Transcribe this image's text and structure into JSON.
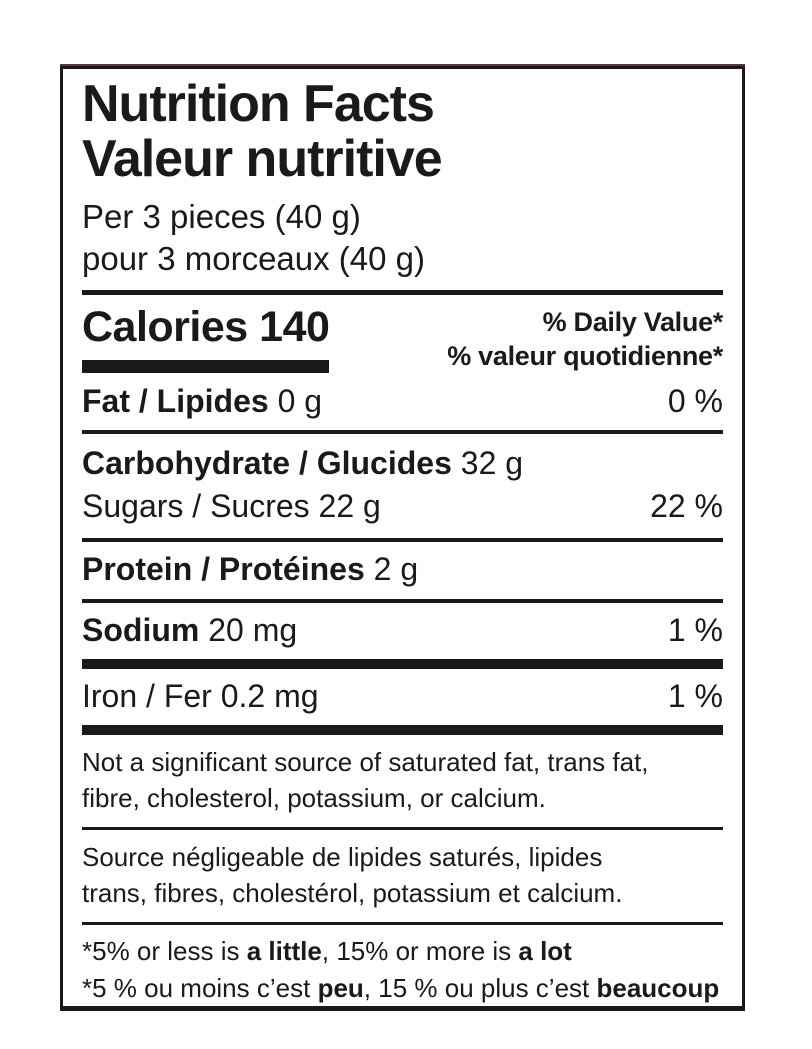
{
  "label": {
    "title_en": "Nutrition Facts",
    "title_fr": "Valeur nutritive",
    "serving_en": "Per 3 pieces (40 g)",
    "serving_fr": "pour 3 morceaux (40 g)",
    "calories_label": "Calories",
    "calories_value": "140",
    "daily_value_en": "% Daily Value*",
    "daily_value_fr": "% valeur quotidienne*",
    "rows": {
      "fat": {
        "name": "Fat / Lipides",
        "amount": "0 g",
        "pct": "0 %"
      },
      "carbohydrate": {
        "name": "Carbohydrate / Glucides",
        "amount": "32 g"
      },
      "sugars": {
        "name": "Sugars / Sucres 22 g",
        "pct": "22 %"
      },
      "protein": {
        "name": "Protein / Protéines",
        "amount": "2 g"
      },
      "sodium": {
        "name": "Sodium",
        "amount": "20 mg",
        "pct": "1 %"
      },
      "iron": {
        "name": "Iron / Fer 0.2 mg",
        "pct": "1 %"
      }
    },
    "not_significant_en_lines": [
      "Not a significant source of saturated fat, trans fat,",
      "fibre, cholesterol, potassium, or calcium."
    ],
    "not_significant_fr_lines": [
      "Source négligeable de lipides saturés, lipides",
      "trans, fibres, cholestérol, potassium et calcium."
    ],
    "footnote_en": {
      "p1": "*5% or less is ",
      "b1": "a little",
      "p2": ", 15% or more is ",
      "b2": "a lot"
    },
    "footnote_fr": {
      "p1": "*5 % ou moins c’est ",
      "b1": "peu",
      "p2": ", 15 % ou plus c’est ",
      "b2": "beaucoup"
    },
    "colors": {
      "ink": "#1a1a1a",
      "background": "#ffffff",
      "top_edge_tint": "#5d3340"
    }
  }
}
